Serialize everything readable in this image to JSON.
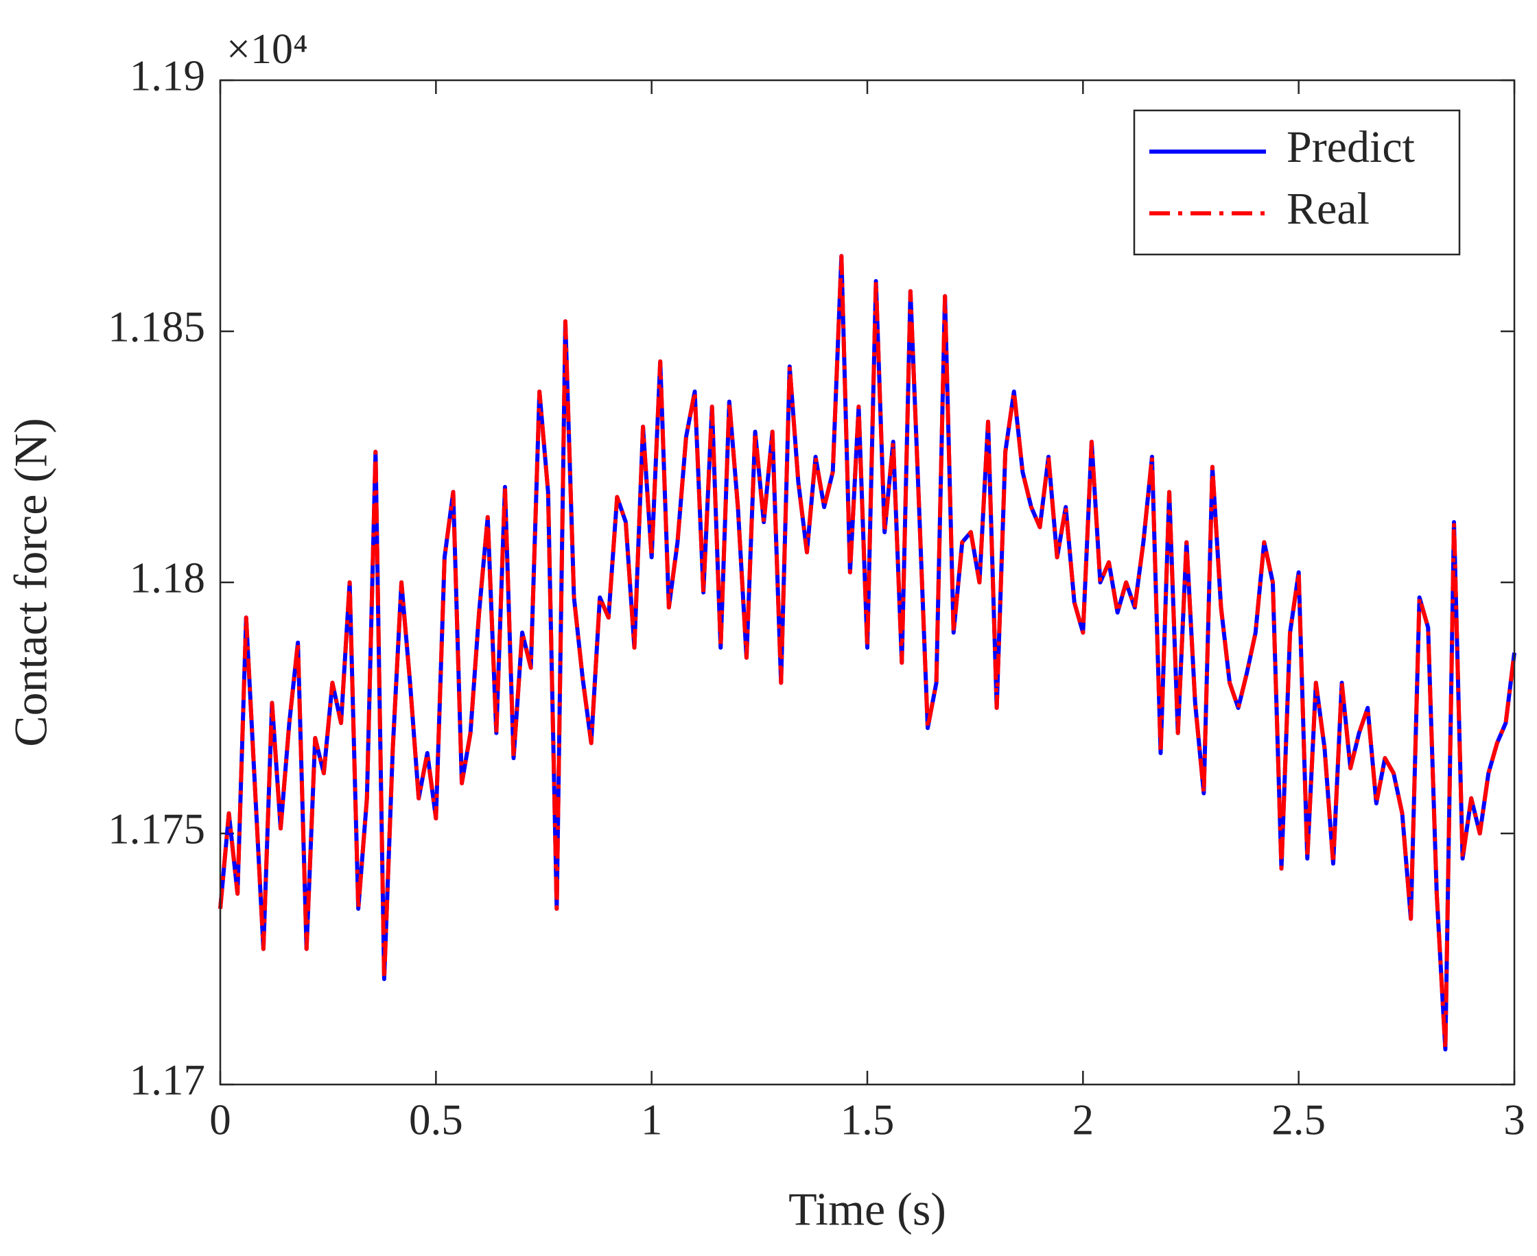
{
  "chart_data": {
    "type": "line",
    "annotation": "×10⁴",
    "xlabel": "Time (s)",
    "ylabel": "Contact force (N)",
    "x": [
      0,
      0.02,
      0.04,
      0.06,
      0.08,
      0.1,
      0.12,
      0.14,
      0.16,
      0.18,
      0.2,
      0.22,
      0.24,
      0.26,
      0.28,
      0.3,
      0.32,
      0.34,
      0.36,
      0.38,
      0.4,
      0.42,
      0.44,
      0.46,
      0.48,
      0.5,
      0.52,
      0.54,
      0.56,
      0.58,
      0.6,
      0.62,
      0.64,
      0.66,
      0.68,
      0.7,
      0.72,
      0.74,
      0.76,
      0.78,
      0.8,
      0.82,
      0.84,
      0.86,
      0.88,
      0.9,
      0.92,
      0.94,
      0.96,
      0.98,
      1,
      1.02,
      1.04,
      1.06,
      1.08,
      1.1,
      1.12,
      1.14,
      1.16,
      1.18,
      1.2,
      1.22,
      1.24,
      1.26,
      1.28,
      1.3,
      1.32,
      1.34,
      1.36,
      1.38,
      1.4,
      1.42,
      1.44,
      1.46,
      1.48,
      1.5,
      1.52,
      1.54,
      1.56,
      1.58,
      1.6,
      1.62,
      1.64,
      1.66,
      1.68,
      1.7,
      1.72,
      1.74,
      1.76,
      1.78,
      1.8,
      1.82,
      1.84,
      1.86,
      1.88,
      1.9,
      1.92,
      1.94,
      1.96,
      1.98,
      2,
      2.02,
      2.04,
      2.06,
      2.08,
      2.1,
      2.12,
      2.14,
      2.16,
      2.18,
      2.2,
      2.22,
      2.24,
      2.26,
      2.28,
      2.3,
      2.32,
      2.34,
      2.36,
      2.38,
      2.4,
      2.42,
      2.44,
      2.46,
      2.48,
      2.5,
      2.52,
      2.54,
      2.56,
      2.58,
      2.6,
      2.62,
      2.64,
      2.66,
      2.68,
      2.7,
      2.72,
      2.74,
      2.76,
      2.78,
      2.8,
      2.82,
      2.84,
      2.86,
      2.88,
      2.9,
      2.92,
      2.94,
      2.96,
      2.98,
      3
    ],
    "series": [
      {
        "name": "Predict",
        "color": "#0000ff",
        "style": "solid",
        "values": [
          1.1735,
          1.1754,
          1.1738,
          1.1793,
          1.176,
          1.1727,
          1.1776,
          1.1751,
          1.1772,
          1.1788,
          1.1727,
          1.1769,
          1.1762,
          1.178,
          1.1772,
          1.18,
          1.1735,
          1.1757,
          1.1826,
          1.1721,
          1.1767,
          1.18,
          1.178,
          1.1757,
          1.1766,
          1.1753,
          1.1805,
          1.1818,
          1.176,
          1.177,
          1.1794,
          1.1813,
          1.177,
          1.1819,
          1.1765,
          1.179,
          1.1783,
          1.1838,
          1.1818,
          1.1735,
          1.1852,
          1.1797,
          1.1781,
          1.1768,
          1.1797,
          1.1793,
          1.1817,
          1.1812,
          1.1787,
          1.1831,
          1.1805,
          1.1844,
          1.1795,
          1.1808,
          1.1829,
          1.1838,
          1.1798,
          1.1835,
          1.1787,
          1.1836,
          1.1815,
          1.1785,
          1.183,
          1.1812,
          1.183,
          1.178,
          1.1843,
          1.182,
          1.1806,
          1.1825,
          1.1815,
          1.1822,
          1.1865,
          1.1802,
          1.1835,
          1.1787,
          1.186,
          1.181,
          1.1828,
          1.1784,
          1.1858,
          1.1815,
          1.1771,
          1.178,
          1.1857,
          1.179,
          1.1808,
          1.181,
          1.18,
          1.1832,
          1.1775,
          1.1826,
          1.1838,
          1.1822,
          1.1815,
          1.1811,
          1.1825,
          1.1805,
          1.1815,
          1.1796,
          1.179,
          1.1828,
          1.18,
          1.1804,
          1.1794,
          1.18,
          1.1795,
          1.1808,
          1.1825,
          1.1766,
          1.1818,
          1.177,
          1.1808,
          1.1776,
          1.1758,
          1.1823,
          1.1795,
          1.178,
          1.1775,
          1.1782,
          1.179,
          1.1808,
          1.18,
          1.1743,
          1.179,
          1.1802,
          1.1745,
          1.178,
          1.1767,
          1.1744,
          1.178,
          1.1763,
          1.177,
          1.1775,
          1.1756,
          1.1765,
          1.1762,
          1.1754,
          1.1733,
          1.1797,
          1.1791,
          1.1738,
          1.1707,
          1.1812,
          1.1745,
          1.1757,
          1.175,
          1.1762,
          1.1768,
          1.1772,
          1.1786
        ]
      },
      {
        "name": "Real",
        "color": "#ff0000",
        "style": "dashdot",
        "values": [
          1.1735,
          1.1754,
          1.1738,
          1.1793,
          1.176,
          1.1727,
          1.1776,
          1.1751,
          1.1772,
          1.1788,
          1.1727,
          1.1769,
          1.1762,
          1.178,
          1.1772,
          1.18,
          1.1735,
          1.1757,
          1.1826,
          1.1721,
          1.1767,
          1.18,
          1.178,
          1.1757,
          1.1766,
          1.1753,
          1.1805,
          1.1818,
          1.176,
          1.177,
          1.1794,
          1.1813,
          1.177,
          1.1819,
          1.1765,
          1.179,
          1.1783,
          1.1838,
          1.1818,
          1.1735,
          1.1852,
          1.1797,
          1.1781,
          1.1768,
          1.1797,
          1.1793,
          1.1817,
          1.1812,
          1.1787,
          1.1831,
          1.1805,
          1.1844,
          1.1795,
          1.1808,
          1.1829,
          1.1838,
          1.1798,
          1.1835,
          1.1787,
          1.1836,
          1.1815,
          1.1785,
          1.183,
          1.1812,
          1.183,
          1.178,
          1.1843,
          1.182,
          1.1806,
          1.1825,
          1.1815,
          1.1822,
          1.1865,
          1.1802,
          1.1835,
          1.1787,
          1.186,
          1.181,
          1.1828,
          1.1784,
          1.1858,
          1.1815,
          1.1771,
          1.178,
          1.1857,
          1.179,
          1.1808,
          1.181,
          1.18,
          1.1832,
          1.1775,
          1.1826,
          1.1838,
          1.1822,
          1.1815,
          1.1811,
          1.1825,
          1.1805,
          1.1815,
          1.1796,
          1.179,
          1.1828,
          1.18,
          1.1804,
          1.1794,
          1.18,
          1.1795,
          1.1808,
          1.1825,
          1.1766,
          1.1818,
          1.177,
          1.1808,
          1.1776,
          1.1758,
          1.1823,
          1.1795,
          1.178,
          1.1775,
          1.1782,
          1.179,
          1.1808,
          1.18,
          1.1743,
          1.179,
          1.1802,
          1.1745,
          1.178,
          1.1767,
          1.1744,
          1.178,
          1.1763,
          1.177,
          1.1775,
          1.1756,
          1.1765,
          1.1762,
          1.1754,
          1.1733,
          1.1797,
          1.1791,
          1.1738,
          1.1707,
          1.1812,
          1.1745,
          1.1757,
          1.175,
          1.1762,
          1.1768,
          1.1772,
          1.1786
        ]
      }
    ],
    "xlim": [
      0,
      3
    ],
    "xticks": [
      0,
      0.5,
      1,
      1.5,
      2,
      2.5,
      3
    ],
    "ylim": [
      1.17,
      1.19
    ],
    "yticks": [
      1.17,
      1.175,
      1.18,
      1.185,
      1.19
    ],
    "grid": false,
    "legend": "upper right"
  }
}
